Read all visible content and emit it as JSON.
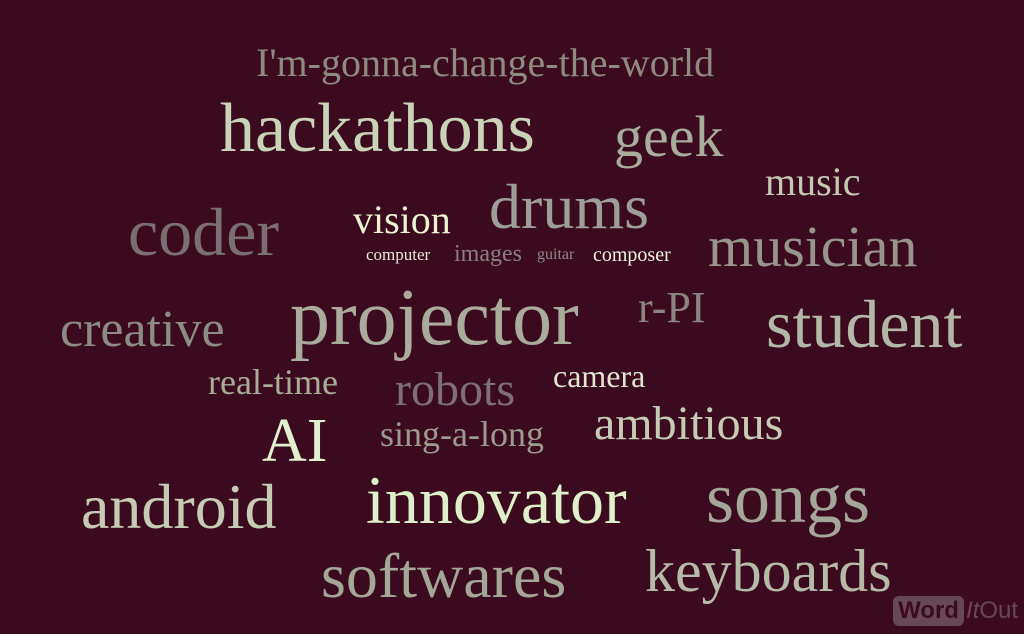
{
  "words": [
    {
      "id": "change-the-world",
      "text": "I'm-gonna-change-the-world",
      "color": "#8e8a7f"
    },
    {
      "id": "hackathons",
      "text": "hackathons",
      "color": "#c9d3b8"
    },
    {
      "id": "geek",
      "text": "geek",
      "color": "#a8ac9d"
    },
    {
      "id": "music",
      "text": "music",
      "color": "#c3c9b3"
    },
    {
      "id": "coder",
      "text": "coder",
      "color": "#7a6f71"
    },
    {
      "id": "vision",
      "text": "vision",
      "color": "#eaf2d2"
    },
    {
      "id": "drums",
      "text": "drums",
      "color": "#9e9e98"
    },
    {
      "id": "musician",
      "text": "musician",
      "color": "#97958c"
    },
    {
      "id": "computer",
      "text": "computer",
      "color": "#e6ead9"
    },
    {
      "id": "images",
      "text": "images",
      "color": "#8a7f80"
    },
    {
      "id": "guitar",
      "text": "guitar",
      "color": "#8f8c86"
    },
    {
      "id": "composer",
      "text": "composer",
      "color": "#eef2df"
    },
    {
      "id": "creative",
      "text": "creative",
      "color": "#8c8c84"
    },
    {
      "id": "projector",
      "text": "projector",
      "color": "#a9ab9c"
    },
    {
      "id": "r-pi",
      "text": "r-PI",
      "color": "#8a8580"
    },
    {
      "id": "student",
      "text": "student",
      "color": "#b3b7a7"
    },
    {
      "id": "real-time",
      "text": "real-time",
      "color": "#a8ad97"
    },
    {
      "id": "robots",
      "text": "robots",
      "color": "#7d7074"
    },
    {
      "id": "camera",
      "text": "camera",
      "color": "#dfe5cf"
    },
    {
      "id": "ai",
      "text": "AI",
      "color": "#e2f1cd"
    },
    {
      "id": "sing-a-long",
      "text": "sing-a-long",
      "color": "#9b9a8f"
    },
    {
      "id": "ambitious",
      "text": "ambitious",
      "color": "#c6cbb5"
    },
    {
      "id": "android",
      "text": "android",
      "color": "#c6ccb4"
    },
    {
      "id": "innovator",
      "text": "innovator",
      "color": "#ddf0c9"
    },
    {
      "id": "songs",
      "text": "songs",
      "color": "#a5a69a"
    },
    {
      "id": "softwares",
      "text": "softwares",
      "color": "#a4a697"
    },
    {
      "id": "keyboards",
      "text": "keyboards",
      "color": "#b6baa9"
    }
  ],
  "logo": {
    "word": "Word",
    "it": "It",
    "out": "Out"
  }
}
